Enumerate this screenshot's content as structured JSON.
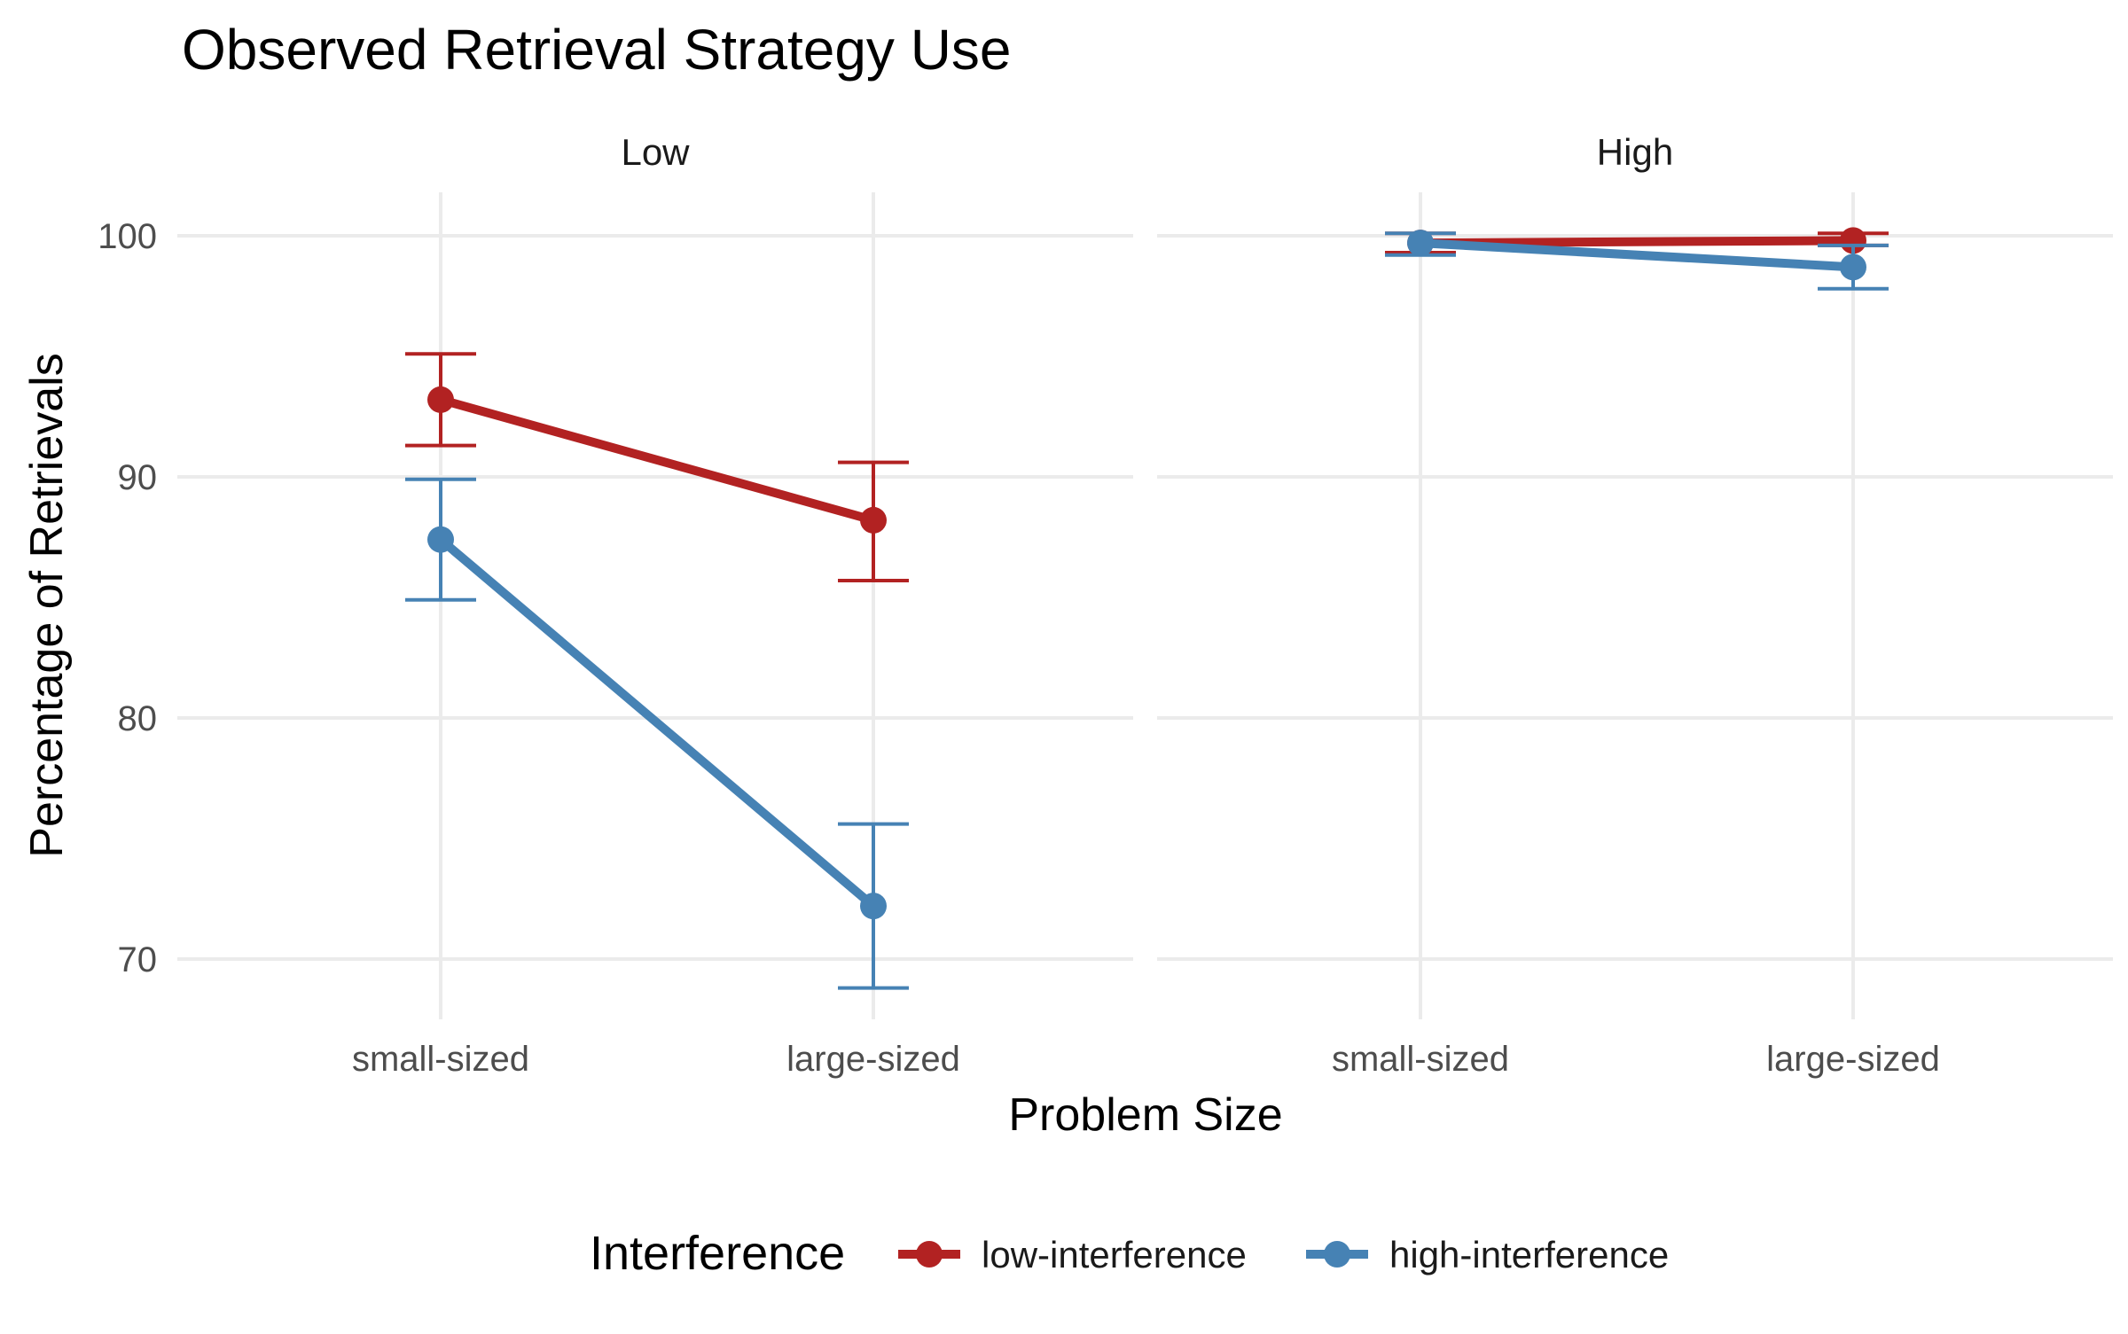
{
  "chart_data": {
    "type": "line",
    "title": "Observed Retrieval Strategy Use",
    "xlabel": "Problem Size",
    "ylabel": "Percentage of Retrievals",
    "categories": [
      "small-sized",
      "large-sized"
    ],
    "ylim": [
      67.5,
      101.8
    ],
    "yticks": [
      70,
      80,
      90,
      100
    ],
    "grid": true,
    "legend": {
      "title": "Interference",
      "position": "bottom"
    },
    "facets": [
      {
        "label": "Low",
        "series": [
          {
            "name": "low-interference",
            "color": "#b22222",
            "values": [
              93.2,
              88.2
            ],
            "lower": [
              91.3,
              85.7
            ],
            "upper": [
              95.1,
              90.6
            ]
          },
          {
            "name": "high-interference",
            "color": "#4682b4",
            "values": [
              87.4,
              72.2
            ],
            "lower": [
              84.9,
              68.8
            ],
            "upper": [
              89.9,
              75.6
            ]
          }
        ]
      },
      {
        "label": "High",
        "series": [
          {
            "name": "low-interference",
            "color": "#b22222",
            "values": [
              99.7,
              99.8
            ],
            "lower": [
              99.3,
              99.6
            ],
            "upper": [
              100.1,
              100.1
            ]
          },
          {
            "name": "high-interference",
            "color": "#4682b4",
            "values": [
              99.7,
              98.7
            ],
            "lower": [
              99.2,
              97.8
            ],
            "upper": [
              100.1,
              99.6
            ]
          }
        ]
      }
    ]
  }
}
